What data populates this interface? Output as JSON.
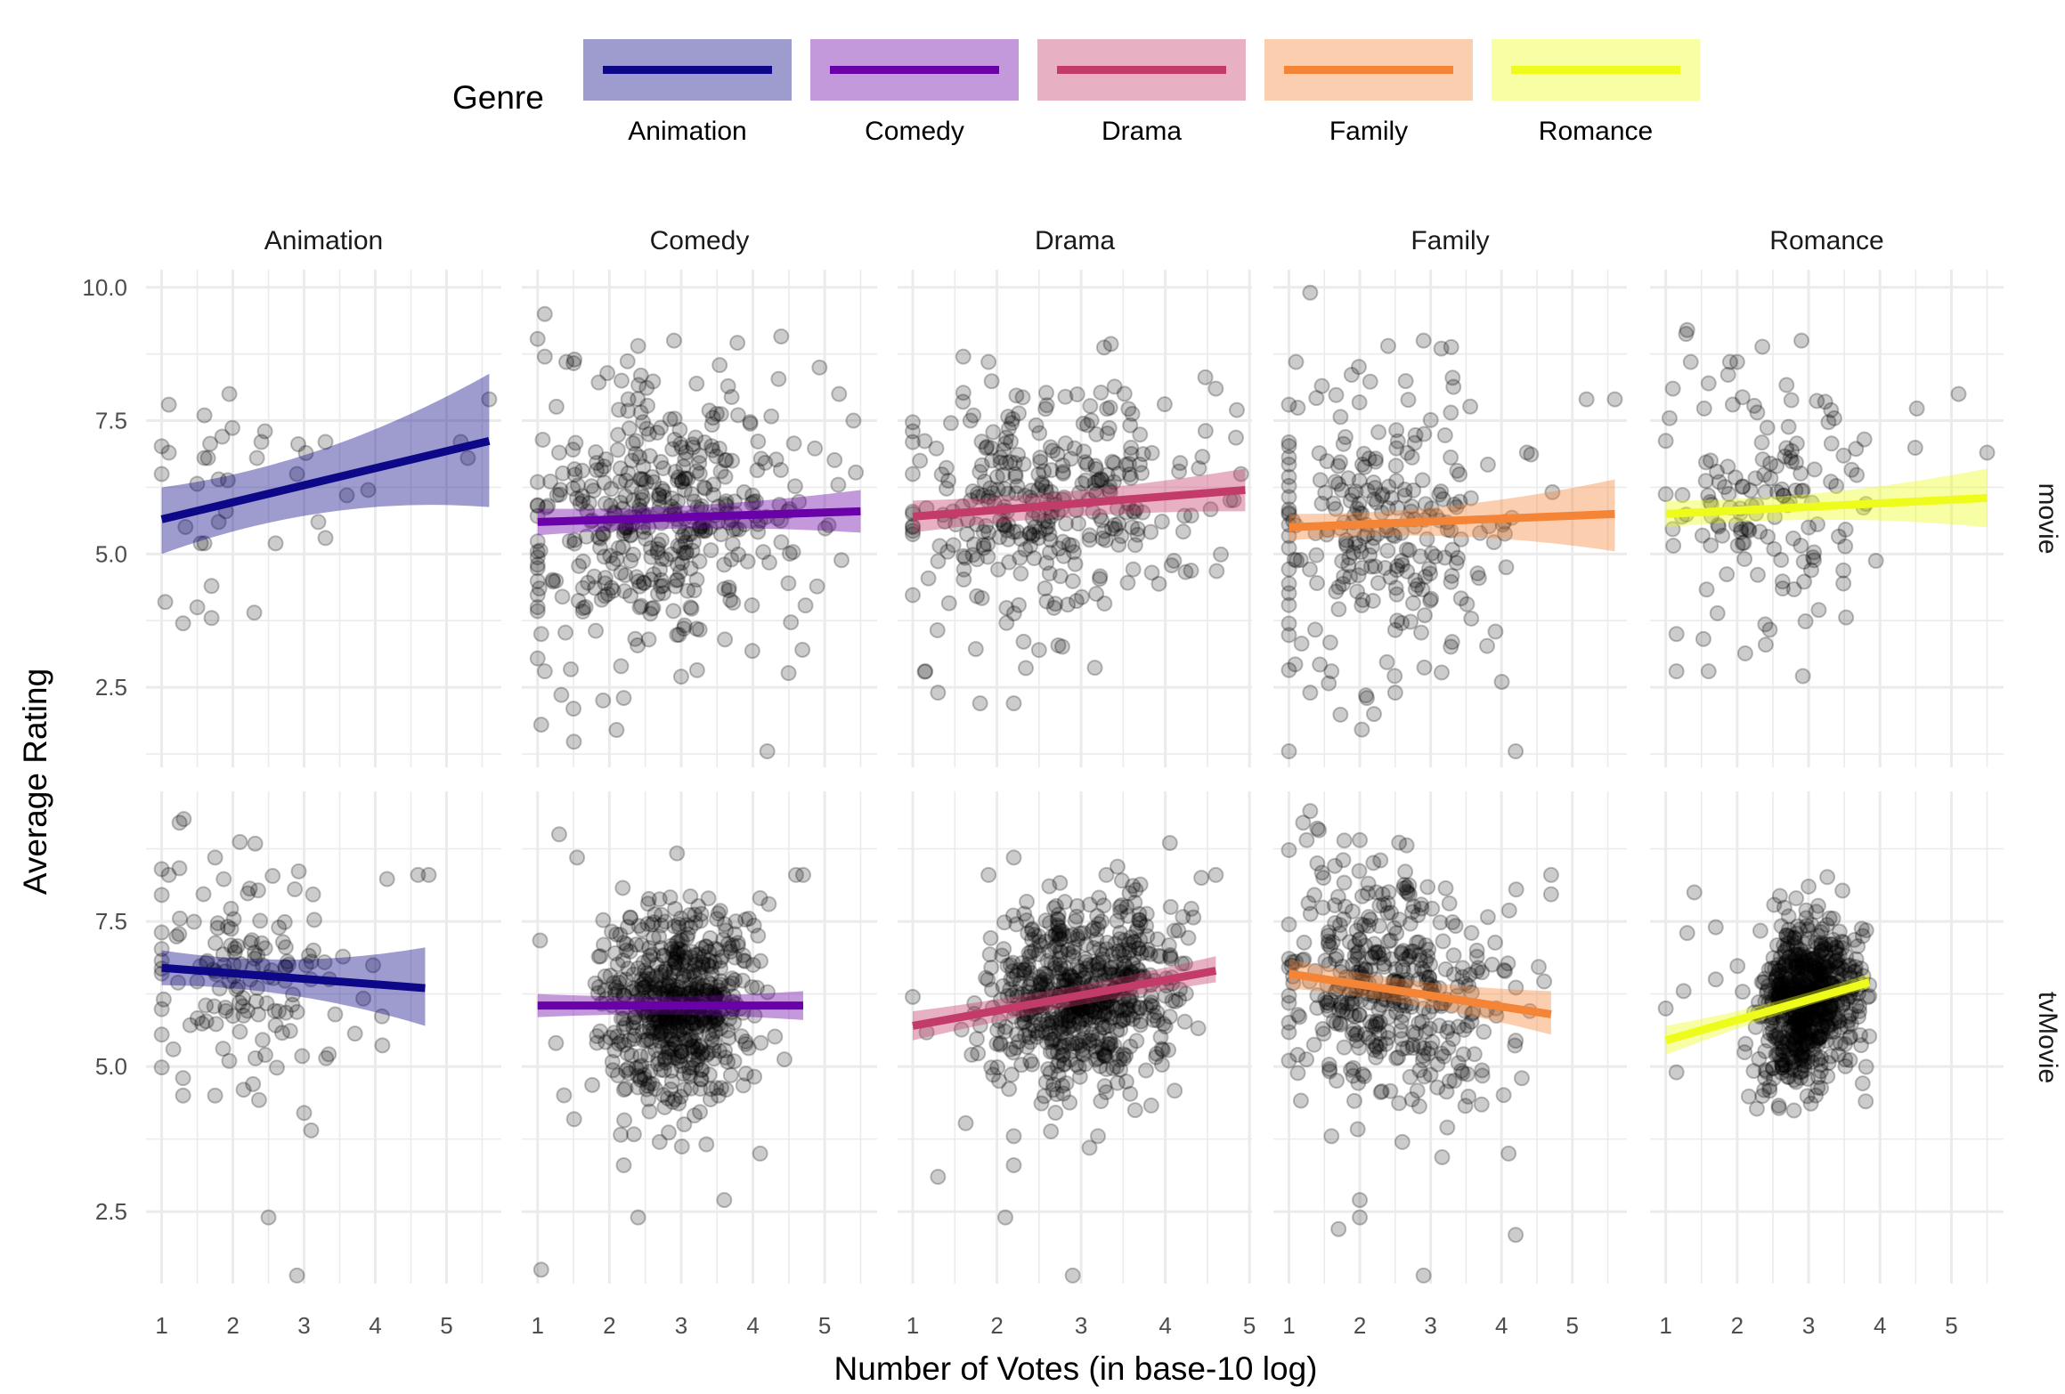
{
  "chart_data": {
    "type": "scatter",
    "title": "",
    "xlabel": "Number of Votes (in base-10 log)",
    "ylabel": "Average Rating",
    "legend": {
      "title": "Genre",
      "placement": "top",
      "entries": [
        {
          "label": "Animation",
          "color": "#0d0887"
        },
        {
          "label": "Comedy",
          "color": "#6a00a8"
        },
        {
          "label": "Drama",
          "color": "#c23b6a"
        },
        {
          "label": "Family",
          "color": "#f48436"
        },
        {
          "label": "Romance",
          "color": "#eefc1c"
        }
      ]
    },
    "facet_cols": [
      "Animation",
      "Comedy",
      "Drama",
      "Family",
      "Romance"
    ],
    "facet_rows": [
      "movie",
      "tvMovie"
    ],
    "scales": "free",
    "grid": true,
    "point_color": "#000000",
    "point_alpha": 0.2,
    "band_alpha": 0.4,
    "x_ticks": [
      1,
      2,
      3,
      4,
      5
    ],
    "x_ranges": {
      "Animation": [
        0.78,
        5.77
      ],
      "Comedy": [
        0.78,
        5.73
      ],
      "Drama": [
        0.82,
        5.03
      ],
      "Family": [
        0.78,
        5.77
      ],
      "Romance": [
        0.78,
        5.73
      ]
    },
    "rows": {
      "movie": {
        "y_ticks": [
          2.5,
          5.0,
          7.5,
          10.0
        ],
        "y_tick_labels": [
          "2.5",
          "5.0",
          "7.5",
          "10.0"
        ],
        "y_range": [
          1.0,
          10.33
        ]
      },
      "tvMovie": {
        "y_ticks": [
          2.5,
          5.0,
          7.5
        ],
        "y_tick_labels": [
          "2.5",
          "5.0",
          "7.5"
        ],
        "y_range": [
          1.26,
          9.74
        ]
      }
    },
    "panels": [
      {
        "row": "movie",
        "genre": "Animation",
        "n": 40,
        "fit": {
          "x": [
            1.0,
            5.6
          ],
          "y": [
            5.65,
            7.12
          ]
        },
        "band": {
          "lo": [
            5.0,
            5.88
          ],
          "hi": [
            6.25,
            8.38
          ]
        },
        "cloud": {
          "x_mean": 2.1,
          "x_sd": 0.75,
          "y_mean": 5.9,
          "y_sd": 1.15
        },
        "points": [
          [
            1.0,
            6.5
          ],
          [
            1.1,
            7.8
          ],
          [
            1.1,
            6.9
          ],
          [
            1.05,
            4.1
          ],
          [
            1.3,
            3.7
          ],
          [
            1.5,
            4.0
          ],
          [
            1.6,
            7.6
          ],
          [
            1.6,
            6.8
          ],
          [
            1.65,
            6.8
          ],
          [
            1.55,
            5.2
          ],
          [
            1.6,
            5.2
          ],
          [
            1.7,
            4.4
          ],
          [
            1.7,
            3.8
          ],
          [
            1.85,
            7.2
          ],
          [
            1.95,
            8.0
          ],
          [
            1.8,
            6.4
          ],
          [
            1.8,
            5.6
          ],
          [
            1.9,
            5.8
          ],
          [
            2.3,
            3.9
          ],
          [
            2.4,
            7.1
          ],
          [
            2.45,
            7.3
          ],
          [
            2.6,
            5.2
          ],
          [
            2.9,
            6.5
          ],
          [
            3.2,
            5.6
          ],
          [
            3.3,
            7.1
          ],
          [
            3.3,
            5.3
          ],
          [
            3.6,
            6.1
          ],
          [
            3.9,
            6.2
          ],
          [
            5.2,
            7.1
          ],
          [
            5.3,
            6.8
          ],
          [
            5.6,
            7.9
          ]
        ]
      },
      {
        "row": "movie",
        "genre": "Comedy",
        "n": 420,
        "fit": {
          "x": [
            1.0,
            5.5
          ],
          "y": [
            5.6,
            5.8
          ]
        },
        "band": {
          "lo": [
            5.35,
            5.4
          ],
          "hi": [
            5.85,
            6.2
          ]
        },
        "cloud": {
          "x_mean": 2.7,
          "x_sd": 0.95,
          "y_mean": 5.6,
          "y_sd": 1.3
        },
        "points": [
          [
            1.1,
            9.5
          ],
          [
            1.1,
            8.7
          ],
          [
            1.05,
            1.8
          ],
          [
            1.5,
            2.1
          ],
          [
            2.1,
            1.7
          ],
          [
            1.4,
            8.6
          ],
          [
            2.4,
            8.9
          ],
          [
            2.9,
            9.0
          ],
          [
            4.2,
            1.3
          ],
          [
            3.0,
            2.7
          ],
          [
            5.2,
            8.0
          ],
          [
            5.4,
            7.5
          ],
          [
            1.3,
            6.9
          ],
          [
            1.05,
            3.5
          ],
          [
            1.1,
            2.8
          ],
          [
            2.2,
            2.3
          ]
        ]
      },
      {
        "row": "movie",
        "genre": "Drama",
        "n": 330,
        "fit": {
          "x": [
            1.0,
            4.95
          ],
          "y": [
            5.7,
            6.2
          ]
        },
        "band": {
          "lo": [
            5.4,
            5.8
          ],
          "hi": [
            6.0,
            6.6
          ]
        },
        "cloud": {
          "x_mean": 2.6,
          "x_sd": 0.9,
          "y_mean": 5.9,
          "y_sd": 1.15
        },
        "points": [
          [
            1.6,
            8.7
          ],
          [
            1.9,
            8.6
          ],
          [
            1.15,
            2.8
          ],
          [
            1.3,
            2.4
          ],
          [
            1.8,
            2.2
          ],
          [
            2.2,
            2.2
          ],
          [
            4.6,
            8.1
          ],
          [
            4.85,
            7.7
          ],
          [
            4.9,
            6.5
          ],
          [
            1.0,
            7.3
          ],
          [
            1.0,
            6.5
          ],
          [
            2.5,
            3.2
          ]
        ]
      },
      {
        "row": "movie",
        "genre": "Family",
        "n": 260,
        "fit": {
          "x": [
            1.0,
            5.6
          ],
          "y": [
            5.5,
            5.75
          ]
        },
        "band": {
          "lo": [
            5.25,
            5.05
          ],
          "hi": [
            5.75,
            6.4
          ]
        },
        "cloud": {
          "x_mean": 2.4,
          "x_sd": 0.95,
          "y_mean": 5.5,
          "y_sd": 1.35
        },
        "points": [
          [
            1.3,
            9.9
          ],
          [
            2.4,
            8.9
          ],
          [
            2.9,
            9.0
          ],
          [
            1.1,
            8.6
          ],
          [
            1.3,
            2.4
          ],
          [
            1.6,
            2.8
          ],
          [
            2.1,
            2.3
          ],
          [
            2.2,
            2.0
          ],
          [
            2.5,
            2.4
          ],
          [
            4.2,
            1.3
          ],
          [
            5.2,
            7.9
          ],
          [
            5.6,
            7.9
          ],
          [
            1.0,
            7.8
          ]
        ]
      },
      {
        "row": "movie",
        "genre": "Romance",
        "n": 150,
        "fit": {
          "x": [
            1.0,
            5.5
          ],
          "y": [
            5.75,
            6.05
          ]
        },
        "band": {
          "lo": [
            5.5,
            5.5
          ],
          "hi": [
            6.0,
            6.6
          ]
        },
        "cloud": {
          "x_mean": 2.5,
          "x_sd": 0.85,
          "y_mean": 5.8,
          "y_sd": 1.1
        },
        "points": [
          [
            1.3,
            9.2
          ],
          [
            2.9,
            9.0
          ],
          [
            1.1,
            8.1
          ],
          [
            1.35,
            8.6
          ],
          [
            1.6,
            8.2
          ],
          [
            1.9,
            8.6
          ],
          [
            2.0,
            8.6
          ],
          [
            1.15,
            3.5
          ],
          [
            1.15,
            2.8
          ],
          [
            1.6,
            2.8
          ],
          [
            5.1,
            8.0
          ],
          [
            5.5,
            6.9
          ],
          [
            2.4,
            3.3
          ]
        ]
      },
      {
        "row": "tvMovie",
        "genre": "Animation",
        "n": 150,
        "fit": {
          "x": [
            1.0,
            4.7
          ],
          "y": [
            6.7,
            6.35
          ]
        },
        "band": {
          "lo": [
            6.4,
            5.7
          ],
          "hi": [
            7.0,
            7.05
          ]
        },
        "cloud": {
          "x_mean": 2.1,
          "x_sd": 0.7,
          "y_mean": 6.6,
          "y_sd": 0.9
        },
        "points": [
          [
            1.25,
            9.2
          ],
          [
            1.0,
            8.4
          ],
          [
            1.1,
            8.3
          ],
          [
            1.75,
            8.6
          ],
          [
            4.6,
            8.3
          ],
          [
            4.75,
            8.3
          ],
          [
            3.0,
            4.2
          ],
          [
            3.1,
            3.9
          ],
          [
            2.5,
            2.4
          ],
          [
            2.9,
            1.4
          ],
          [
            1.3,
            4.5
          ],
          [
            1.3,
            4.8
          ],
          [
            1.75,
            4.5
          ],
          [
            2.15,
            4.6
          ]
        ]
      },
      {
        "row": "tvMovie",
        "genre": "Comedy",
        "n": 600,
        "fit": {
          "x": [
            1.0,
            4.7
          ],
          "y": [
            6.05,
            6.05
          ]
        },
        "band": {
          "lo": [
            5.85,
            5.8
          ],
          "hi": [
            6.25,
            6.3
          ]
        },
        "cloud": {
          "x_mean": 2.9,
          "x_sd": 0.55,
          "y_mean": 6.0,
          "y_sd": 0.85
        },
        "points": [
          [
            1.3,
            9.0
          ],
          [
            1.05,
            1.5
          ],
          [
            2.4,
            2.4
          ],
          [
            3.6,
            2.7
          ],
          [
            4.1,
            3.5
          ],
          [
            2.2,
            3.3
          ],
          [
            2.7,
            3.7
          ],
          [
            4.6,
            8.3
          ],
          [
            4.7,
            8.3
          ],
          [
            1.55,
            8.6
          ],
          [
            4.1,
            7.9
          ]
        ]
      },
      {
        "row": "tvMovie",
        "genre": "Drama",
        "n": 650,
        "fit": {
          "x": [
            1.0,
            4.6
          ],
          "y": [
            5.7,
            6.65
          ]
        },
        "band": {
          "lo": [
            5.45,
            6.45
          ],
          "hi": [
            5.95,
            6.9
          ]
        },
        "cloud": {
          "x_mean": 3.0,
          "x_sd": 0.55,
          "y_mean": 6.2,
          "y_sd": 0.8
        },
        "points": [
          [
            2.2,
            8.6
          ],
          [
            1.9,
            8.3
          ],
          [
            4.6,
            8.3
          ],
          [
            3.3,
            8.3
          ],
          [
            1.3,
            3.1
          ],
          [
            2.1,
            2.4
          ],
          [
            2.9,
            1.4
          ],
          [
            3.1,
            3.6
          ],
          [
            3.2,
            3.8
          ],
          [
            2.2,
            3.3
          ],
          [
            2.2,
            3.8
          ],
          [
            1.0,
            6.2
          ]
        ]
      },
      {
        "row": "tvMovie",
        "genre": "Family",
        "n": 420,
        "fit": {
          "x": [
            1.0,
            4.7
          ],
          "y": [
            6.6,
            5.9
          ]
        },
        "band": {
          "lo": [
            6.35,
            5.55
          ],
          "hi": [
            6.85,
            6.3
          ]
        },
        "cloud": {
          "x_mean": 2.5,
          "x_sd": 0.8,
          "y_mean": 6.2,
          "y_sd": 1.0
        },
        "points": [
          [
            1.3,
            9.4
          ],
          [
            1.2,
            9.2
          ],
          [
            1.4,
            9.1
          ],
          [
            1.25,
            8.9
          ],
          [
            1.4,
            8.5
          ],
          [
            2.0,
            8.9
          ],
          [
            4.7,
            8.3
          ],
          [
            1.7,
            2.2
          ],
          [
            2.0,
            2.7
          ],
          [
            2.0,
            2.4
          ],
          [
            2.9,
            1.4
          ],
          [
            4.1,
            3.5
          ],
          [
            4.2,
            2.1
          ],
          [
            2.6,
            3.7
          ],
          [
            1.6,
            3.8
          ]
        ]
      },
      {
        "row": "tvMovie",
        "genre": "Romance",
        "n": 650,
        "fit": {
          "x": [
            1.0,
            3.85
          ],
          "y": [
            5.45,
            6.45
          ]
        },
        "band": {
          "lo": [
            5.2,
            6.35
          ],
          "hi": [
            5.7,
            6.6
          ]
        },
        "cloud": {
          "x_mean": 3.0,
          "x_sd": 0.35,
          "y_mean": 6.1,
          "y_sd": 0.7
        },
        "points": [
          [
            1.4,
            8.0
          ],
          [
            3.0,
            8.1
          ],
          [
            1.0,
            6.0
          ],
          [
            1.15,
            4.9
          ],
          [
            3.8,
            4.4
          ],
          [
            1.25,
            6.3
          ],
          [
            1.7,
            6.5
          ],
          [
            1.7,
            7.4
          ],
          [
            1.3,
            7.3
          ]
        ]
      }
    ]
  }
}
